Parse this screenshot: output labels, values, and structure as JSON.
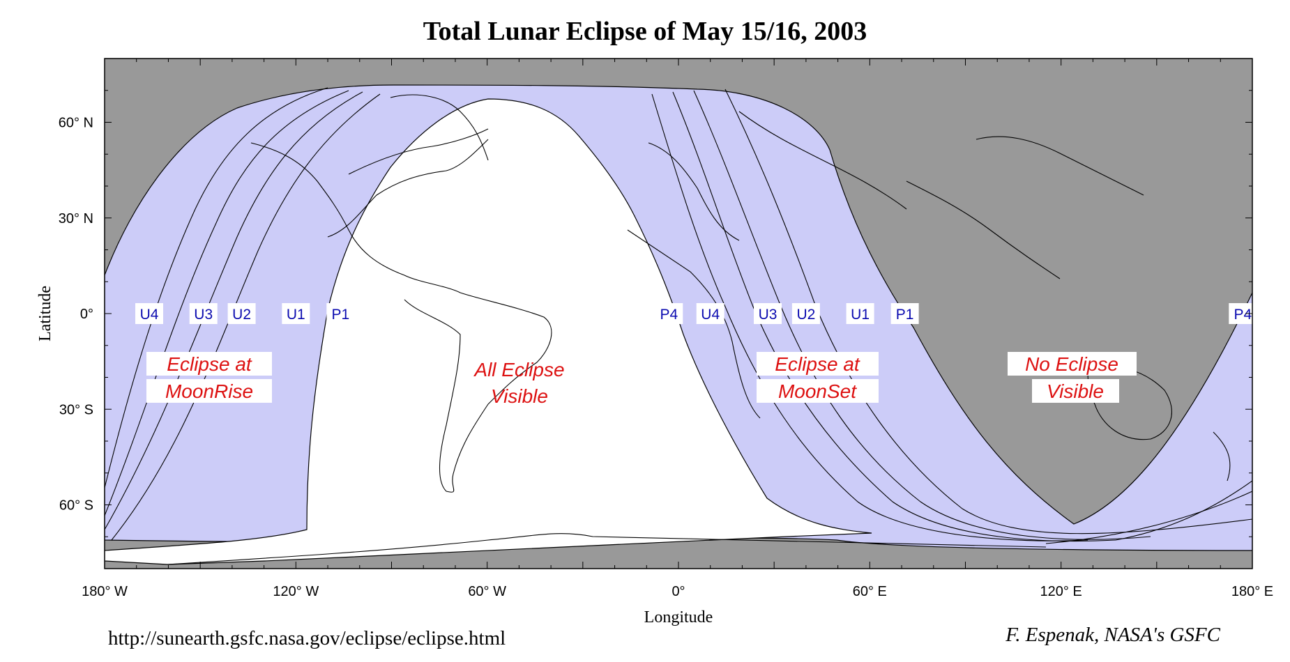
{
  "title": "Total Lunar Eclipse of  May 15/16, 2003",
  "axes": {
    "xlabel": "Longitude",
    "ylabel": "Latitude",
    "x_ticks": [
      {
        "lon": -180,
        "label": "180° W"
      },
      {
        "lon": -120,
        "label": "120° W"
      },
      {
        "lon": -60,
        "label": "60° W"
      },
      {
        "lon": 0,
        "label": "0°"
      },
      {
        "lon": 60,
        "label": "60° E"
      },
      {
        "lon": 120,
        "label": "120° E"
      },
      {
        "lon": 180,
        "label": "180° E"
      }
    ],
    "y_ticks": [
      {
        "lat": 60,
        "label": "60° N"
      },
      {
        "lat": 30,
        "label": "30° N"
      },
      {
        "lat": 0,
        "label": "0°"
      },
      {
        "lat": -30,
        "label": "30° S"
      },
      {
        "lat": -60,
        "label": "60° S"
      }
    ],
    "lon_range": [
      -180,
      180
    ],
    "lat_range": [
      -80,
      80
    ]
  },
  "contact_labels": [
    {
      "text": "U4",
      "lon": -166
    },
    {
      "text": "U3",
      "lon": -149
    },
    {
      "text": "U2",
      "lon": -137
    },
    {
      "text": "U1",
      "lon": -120
    },
    {
      "text": "P1",
      "lon": -106
    },
    {
      "text": "P4",
      "lon": -3
    },
    {
      "text": "U4",
      "lon": 10
    },
    {
      "text": "U3",
      "lon": 28
    },
    {
      "text": "U2",
      "lon": 40
    },
    {
      "text": "U1",
      "lon": 57
    },
    {
      "text": "P1",
      "lon": 71
    },
    {
      "text": "P4",
      "lon": 177
    }
  ],
  "regions": {
    "moonrise": [
      "Eclipse at",
      "MoonRise"
    ],
    "all_visible": [
      "All Eclipse",
      "Visible"
    ],
    "moonset": [
      "Eclipse at",
      "MoonSet"
    ],
    "no_eclipse": [
      "No Eclipse",
      "Visible"
    ]
  },
  "colors": {
    "no_eclipse": "#999999",
    "partial_visibility": "#ccccf8",
    "full_visibility": "#ffffff",
    "contact_label": "#0b0bb0",
    "region_label": "#dd1111"
  },
  "footer": {
    "url": "http://sunearth.gsfc.nasa.gov/eclipse/eclipse.html",
    "credit": "F. Espenak, NASA's GSFC"
  }
}
